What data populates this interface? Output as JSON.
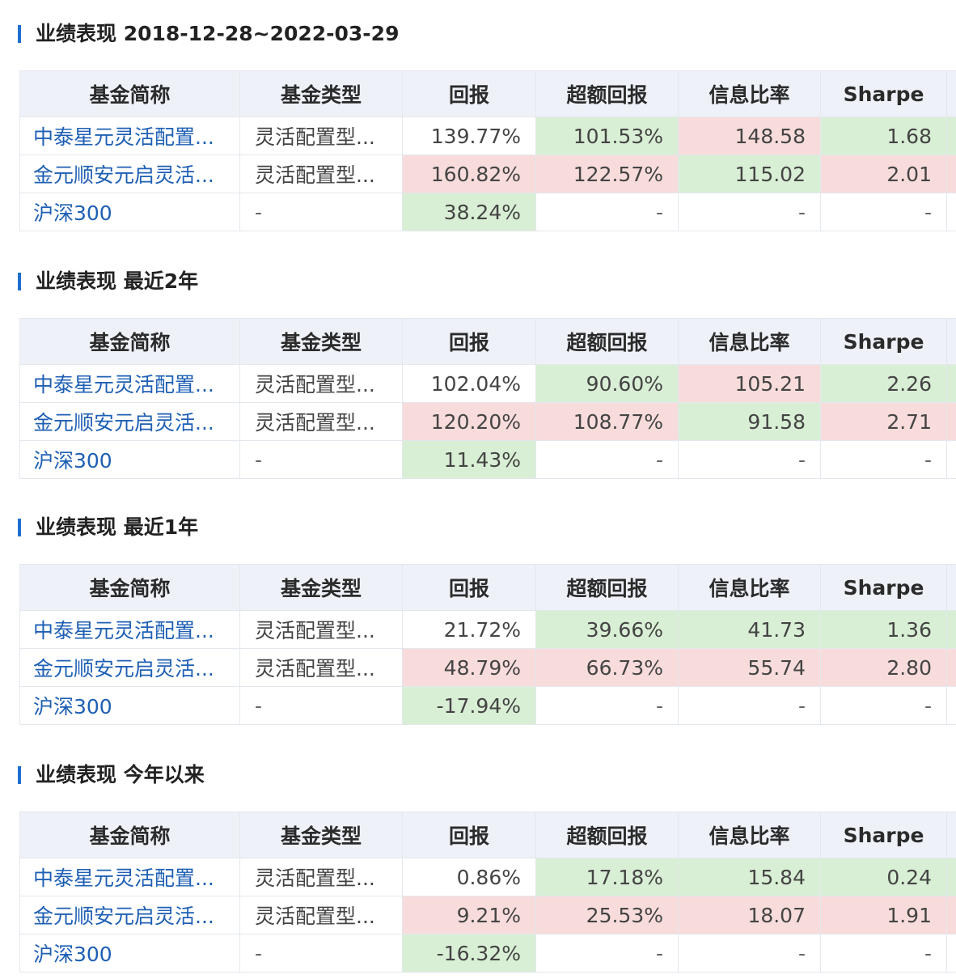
{
  "colors": {
    "accent": "#1f6fd1",
    "link": "#1e5fb4",
    "header_bg": "#eef2f8",
    "cell_green": "#d9efd5",
    "cell_red": "#f7dcdb"
  },
  "sections": [
    {
      "title": "业绩表现 2018-12-28~2022-03-29",
      "columns": [
        "基金简称",
        "基金类型",
        "回报",
        "超额回报",
        "信息比率",
        "Sharpe"
      ],
      "rows": [
        {
          "name": "中泰星元灵活配置...",
          "type": "灵活配置型...",
          "return": "139.77%",
          "excess": "101.53%",
          "info_ratio": "148.58",
          "sharpe": "1.68",
          "highlight": {
            "return": "",
            "excess": "green",
            "info_ratio": "red",
            "sharpe": "green"
          }
        },
        {
          "name": "金元顺安元启灵活...",
          "type": "灵活配置型...",
          "return": "160.82%",
          "excess": "122.57%",
          "info_ratio": "115.02",
          "sharpe": "2.01",
          "highlight": {
            "return": "red",
            "excess": "red",
            "info_ratio": "green",
            "sharpe": "red"
          }
        },
        {
          "name": "沪深300",
          "type": "-",
          "return": "38.24%",
          "excess": "-",
          "info_ratio": "-",
          "sharpe": "-",
          "highlight": {
            "return": "green",
            "excess": "",
            "info_ratio": "",
            "sharpe": ""
          }
        }
      ]
    },
    {
      "title": "业绩表现 最近2年",
      "columns": [
        "基金简称",
        "基金类型",
        "回报",
        "超额回报",
        "信息比率",
        "Sharpe"
      ],
      "rows": [
        {
          "name": "中泰星元灵活配置...",
          "type": "灵活配置型...",
          "return": "102.04%",
          "excess": "90.60%",
          "info_ratio": "105.21",
          "sharpe": "2.26",
          "highlight": {
            "return": "",
            "excess": "green",
            "info_ratio": "red",
            "sharpe": "green"
          }
        },
        {
          "name": "金元顺安元启灵活...",
          "type": "灵活配置型...",
          "return": "120.20%",
          "excess": "108.77%",
          "info_ratio": "91.58",
          "sharpe": "2.71",
          "highlight": {
            "return": "red",
            "excess": "red",
            "info_ratio": "green",
            "sharpe": "red"
          }
        },
        {
          "name": "沪深300",
          "type": "-",
          "return": "11.43%",
          "excess": "-",
          "info_ratio": "-",
          "sharpe": "-",
          "highlight": {
            "return": "green",
            "excess": "",
            "info_ratio": "",
            "sharpe": ""
          }
        }
      ]
    },
    {
      "title": "业绩表现 最近1年",
      "columns": [
        "基金简称",
        "基金类型",
        "回报",
        "超额回报",
        "信息比率",
        "Sharpe"
      ],
      "rows": [
        {
          "name": "中泰星元灵活配置...",
          "type": "灵活配置型...",
          "return": "21.72%",
          "excess": "39.66%",
          "info_ratio": "41.73",
          "sharpe": "1.36",
          "highlight": {
            "return": "",
            "excess": "green",
            "info_ratio": "green",
            "sharpe": "green"
          }
        },
        {
          "name": "金元顺安元启灵活...",
          "type": "灵活配置型...",
          "return": "48.79%",
          "excess": "66.73%",
          "info_ratio": "55.74",
          "sharpe": "2.80",
          "highlight": {
            "return": "red",
            "excess": "red",
            "info_ratio": "red",
            "sharpe": "red"
          }
        },
        {
          "name": "沪深300",
          "type": "-",
          "return": "-17.94%",
          "excess": "-",
          "info_ratio": "-",
          "sharpe": "-",
          "highlight": {
            "return": "green",
            "excess": "",
            "info_ratio": "",
            "sharpe": ""
          }
        }
      ]
    },
    {
      "title": "业绩表现 今年以来",
      "columns": [
        "基金简称",
        "基金类型",
        "回报",
        "超额回报",
        "信息比率",
        "Sharpe"
      ],
      "rows": [
        {
          "name": "中泰星元灵活配置...",
          "type": "灵活配置型...",
          "return": "0.86%",
          "excess": "17.18%",
          "info_ratio": "15.84",
          "sharpe": "0.24",
          "highlight": {
            "return": "",
            "excess": "green",
            "info_ratio": "green",
            "sharpe": "green"
          }
        },
        {
          "name": "金元顺安元启灵活...",
          "type": "灵活配置型...",
          "return": "9.21%",
          "excess": "25.53%",
          "info_ratio": "18.07",
          "sharpe": "1.91",
          "highlight": {
            "return": "red",
            "excess": "red",
            "info_ratio": "red",
            "sharpe": "red"
          }
        },
        {
          "name": "沪深300",
          "type": "-",
          "return": "-16.32%",
          "excess": "-",
          "info_ratio": "-",
          "sharpe": "-",
          "highlight": {
            "return": "green",
            "excess": "",
            "info_ratio": "",
            "sharpe": ""
          }
        }
      ]
    }
  ]
}
